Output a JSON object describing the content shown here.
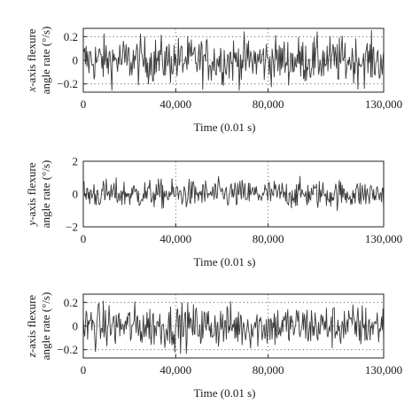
{
  "chart_data": [
    {
      "type": "line",
      "xlabel": "Time (0.01 s)",
      "ylabel_italic": "x",
      "ylabel_line1": "-axis flexure",
      "ylabel_line2": "angle rate (°/s)",
      "xlim": [
        0,
        130000
      ],
      "ylim": [
        -0.27,
        0.27
      ],
      "xticks": [
        0,
        40000,
        80000,
        130000
      ],
      "xtick_labels": [
        "0",
        "40,000",
        "80,000",
        "130,000"
      ],
      "yticks": [
        0.2,
        0,
        -0.2
      ],
      "ytick_labels": [
        "0.2",
        "0",
        "−0.2"
      ],
      "grid": true,
      "series": [
        {
          "color": "#3a3a3a",
          "noise_amplitude": 0.18,
          "x": [
            0,
            130000
          ]
        }
      ]
    },
    {
      "type": "line",
      "xlabel": "Time (0.01 s)",
      "ylabel_italic": "y",
      "ylabel_line1": "-axis flexure",
      "ylabel_line2": "angle rate (°/s)",
      "xlim": [
        0,
        130000
      ],
      "ylim": [
        -2,
        2
      ],
      "xticks": [
        0,
        40000,
        80000,
        130000
      ],
      "xtick_labels": [
        "0",
        "40,000",
        "80,000",
        "130,000"
      ],
      "yticks": [
        2,
        0,
        -2
      ],
      "ytick_labels": [
        "2",
        "0",
        "−2"
      ],
      "grid": true,
      "series": [
        {
          "color": "#3a3a3a",
          "noise_amplitude": 0.8,
          "x": [
            0,
            130000
          ]
        }
      ]
    },
    {
      "type": "line",
      "xlabel": "Time (0.01 s)",
      "ylabel_italic": "z",
      "ylabel_line1": "-axis flexure",
      "ylabel_line2": "angle rate (°/s)",
      "xlim": [
        0,
        130000
      ],
      "ylim": [
        -0.27,
        0.27
      ],
      "xticks": [
        0,
        40000,
        80000,
        130000
      ],
      "xtick_labels": [
        "0",
        "40,000",
        "80,000",
        "130,000"
      ],
      "yticks": [
        0.2,
        0,
        -0.2
      ],
      "ytick_labels": [
        "0.2",
        "0",
        "−0.2"
      ],
      "grid": true,
      "series": [
        {
          "color": "#3a3a3a",
          "noise_amplitude": 0.17,
          "x": [
            0,
            130000
          ]
        }
      ]
    }
  ]
}
